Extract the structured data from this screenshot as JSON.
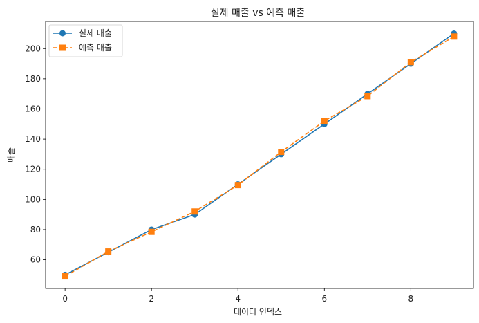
{
  "chart_data": {
    "type": "line",
    "title": "실제 매출 vs 예측 매출",
    "xlabel": "데이터 인덱스",
    "ylabel": "매출",
    "x": [
      0,
      1,
      2,
      3,
      4,
      5,
      6,
      7,
      8,
      9
    ],
    "xlim": [
      -0.45,
      9.45
    ],
    "ylim": [
      41,
      218
    ],
    "xticks": [
      0,
      2,
      4,
      6,
      8
    ],
    "yticks": [
      60,
      80,
      100,
      120,
      140,
      160,
      180,
      200
    ],
    "grid": false,
    "legend_position": "top-left",
    "series": [
      {
        "name": "실제 매출",
        "color": "#1f77b4",
        "line_style": "solid",
        "marker": "circle",
        "values": [
          50,
          65,
          80,
          90,
          110,
          130,
          150,
          170,
          190,
          210
        ]
      },
      {
        "name": "예측 매출",
        "color": "#ff7f0e",
        "line_style": "dashed",
        "marker": "square",
        "values": [
          49,
          65.5,
          78.5,
          92,
          109.5,
          131.5,
          152,
          168.5,
          191,
          208
        ]
      }
    ]
  }
}
